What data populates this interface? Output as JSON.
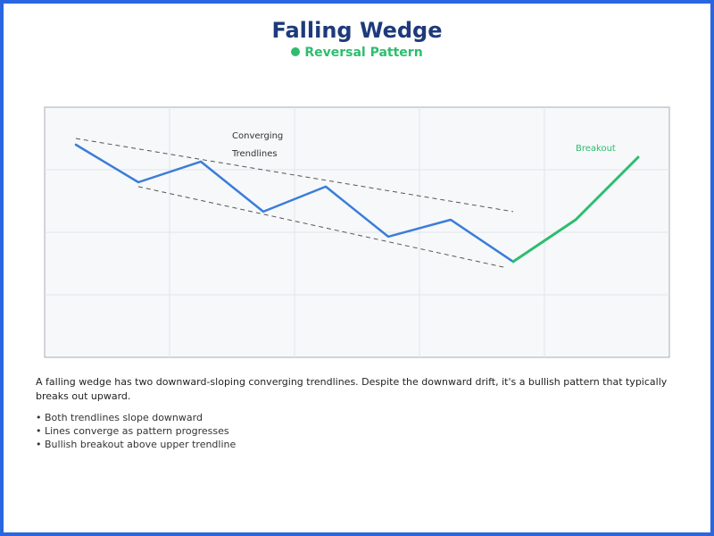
{
  "header": {
    "title": "Falling Wedge",
    "subtitle": "Reversal Pattern"
  },
  "colors": {
    "frame": "#2a66e0",
    "title": "#1e3a7b",
    "accent_green": "#2dbd6e",
    "price_line": "#3b7dd8",
    "trendline": "#555555",
    "plot_bg": "#f6f8fa",
    "grid": "#e3e6ea"
  },
  "chart_data": {
    "type": "line",
    "grid": true,
    "xlim": [
      0,
      10
    ],
    "ylim": [
      0,
      4
    ],
    "x": [
      0.5,
      1.5,
      2.5,
      3.5,
      4.5,
      5.5,
      6.5,
      7.5,
      8.5,
      9.5
    ],
    "y": [
      3.4,
      2.8,
      3.13,
      2.33,
      2.73,
      1.93,
      2.2,
      1.53,
      2.2,
      3.2
    ],
    "series": [
      {
        "role": "price-decline",
        "x": [
          0.5,
          1.5,
          2.5,
          3.5,
          4.5,
          5.5,
          6.5,
          7.5
        ],
        "y": [
          3.4,
          2.8,
          3.13,
          2.33,
          2.73,
          1.93,
          2.2,
          1.53
        ],
        "color": "#3b7dd8"
      },
      {
        "role": "breakout",
        "x": [
          7.5,
          8.5,
          9.5
        ],
        "y": [
          1.53,
          2.2,
          3.2
        ],
        "color": "#2dbd6e"
      }
    ],
    "trendlines": [
      {
        "role": "upper-trendline",
        "x": [
          0.5,
          7.5
        ],
        "y": [
          3.5,
          2.33
        ]
      },
      {
        "role": "lower-trendline",
        "x": [
          1.5,
          7.4
        ],
        "y": [
          2.73,
          1.43
        ]
      }
    ],
    "annotations": [
      {
        "text_lines": [
          "Converging",
          "Trendlines"
        ],
        "x": 3.0,
        "y": 3.5,
        "color": "#333333"
      },
      {
        "text_lines": [
          "Breakout"
        ],
        "x": 8.5,
        "y": 3.3,
        "color": "#2dbd6e"
      }
    ]
  },
  "description": "A falling wedge has two downward-sloping converging trendlines. Despite the downward drift, it's a bullish pattern that typically breaks out upward.",
  "bullets": [
    "Both trendlines slope downward",
    "Lines converge as pattern progresses",
    "Bullish breakout above upper trendline"
  ]
}
